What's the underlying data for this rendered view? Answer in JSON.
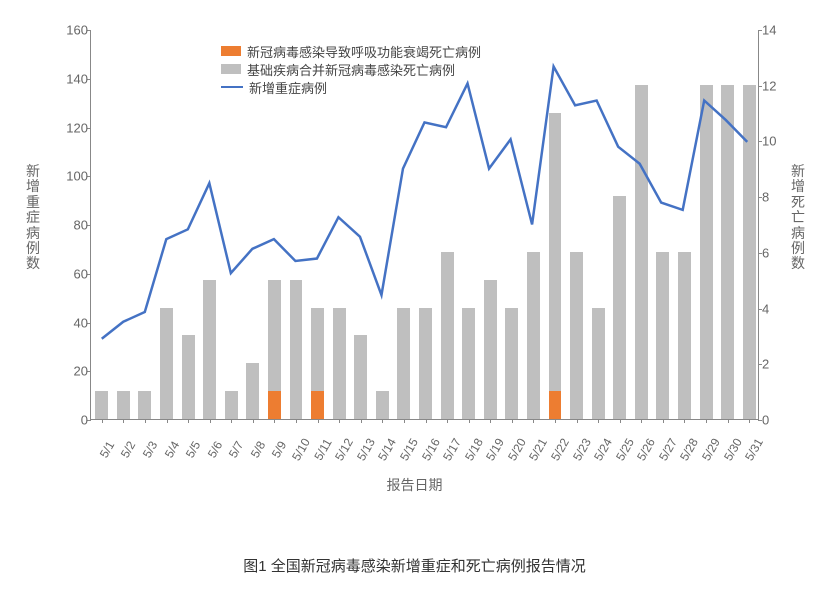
{
  "chart": {
    "type": "combo-bar-line",
    "background_color": "#ffffff",
    "axis_color": "#888888",
    "tick_font_color": "#666666",
    "tick_font_size": 13,
    "label_font_size": 14,
    "bar_width_ratio": 0.6,
    "left_axis": {
      "title": "新增重症病例数",
      "min": 0,
      "max": 160,
      "step": 20
    },
    "right_axis": {
      "title": "新增死亡病例数",
      "min": 0,
      "max": 14,
      "step": 2
    },
    "x_axis": {
      "title": "报告日期",
      "tick_rotation_deg": -60,
      "labels": [
        "5/1",
        "5/2",
        "5/3",
        "5/4",
        "5/5",
        "5/6",
        "5/7",
        "5/8",
        "5/9",
        "5/10",
        "5/11",
        "5/12",
        "5/13",
        "5/14",
        "5/15",
        "5/16",
        "5/17",
        "5/18",
        "5/19",
        "5/20",
        "5/21",
        "5/22",
        "5/23",
        "5/24",
        "5/25",
        "5/26",
        "5/27",
        "5/28",
        "5/29",
        "5/30",
        "5/31"
      ]
    },
    "legend": {
      "position": "top-left",
      "items": [
        {
          "type": "swatch",
          "color": "#ED7D31",
          "label": "新冠病毒感染导致呼吸功能衰竭死亡病例"
        },
        {
          "type": "swatch",
          "color": "#BFBFBF",
          "label": "基础疾病合并新冠病毒感染死亡病例"
        },
        {
          "type": "line",
          "color": "#4472C4",
          "label": "新增重症病例"
        }
      ]
    },
    "series": {
      "bar_orange": {
        "name": "新冠病毒感染导致呼吸功能衰竭死亡病例",
        "axis": "right",
        "color": "#ED7D31",
        "values": [
          0,
          0,
          0,
          0,
          0,
          0,
          0,
          0,
          1,
          0,
          1,
          0,
          0,
          0,
          0,
          0,
          0,
          0,
          0,
          0,
          0,
          1,
          0,
          0,
          0,
          0,
          0,
          0,
          0,
          0,
          0
        ]
      },
      "bar_gray": {
        "name": "基础疾病合并新冠病毒感染死亡病例",
        "axis": "right",
        "color": "#BFBFBF",
        "values": [
          1,
          1,
          1,
          4,
          3,
          5,
          1,
          2,
          4,
          5,
          3,
          4,
          3,
          1,
          4,
          4,
          6,
          4,
          5,
          4,
          6,
          10,
          6,
          4,
          8,
          12,
          6,
          6,
          12,
          12,
          12
        ]
      },
      "line_blue": {
        "name": "新增重症病例",
        "axis": "left",
        "color": "#4472C4",
        "line_width": 2.5,
        "values": [
          33,
          40,
          44,
          74,
          78,
          97,
          60,
          70,
          74,
          65,
          66,
          83,
          75,
          51,
          103,
          122,
          120,
          138,
          103,
          115,
          80,
          145,
          129,
          131,
          112,
          105,
          89,
          86,
          131,
          123,
          114
        ]
      }
    }
  },
  "caption": "图1 全国新冠病毒感染新增重症和死亡病例报告情况"
}
